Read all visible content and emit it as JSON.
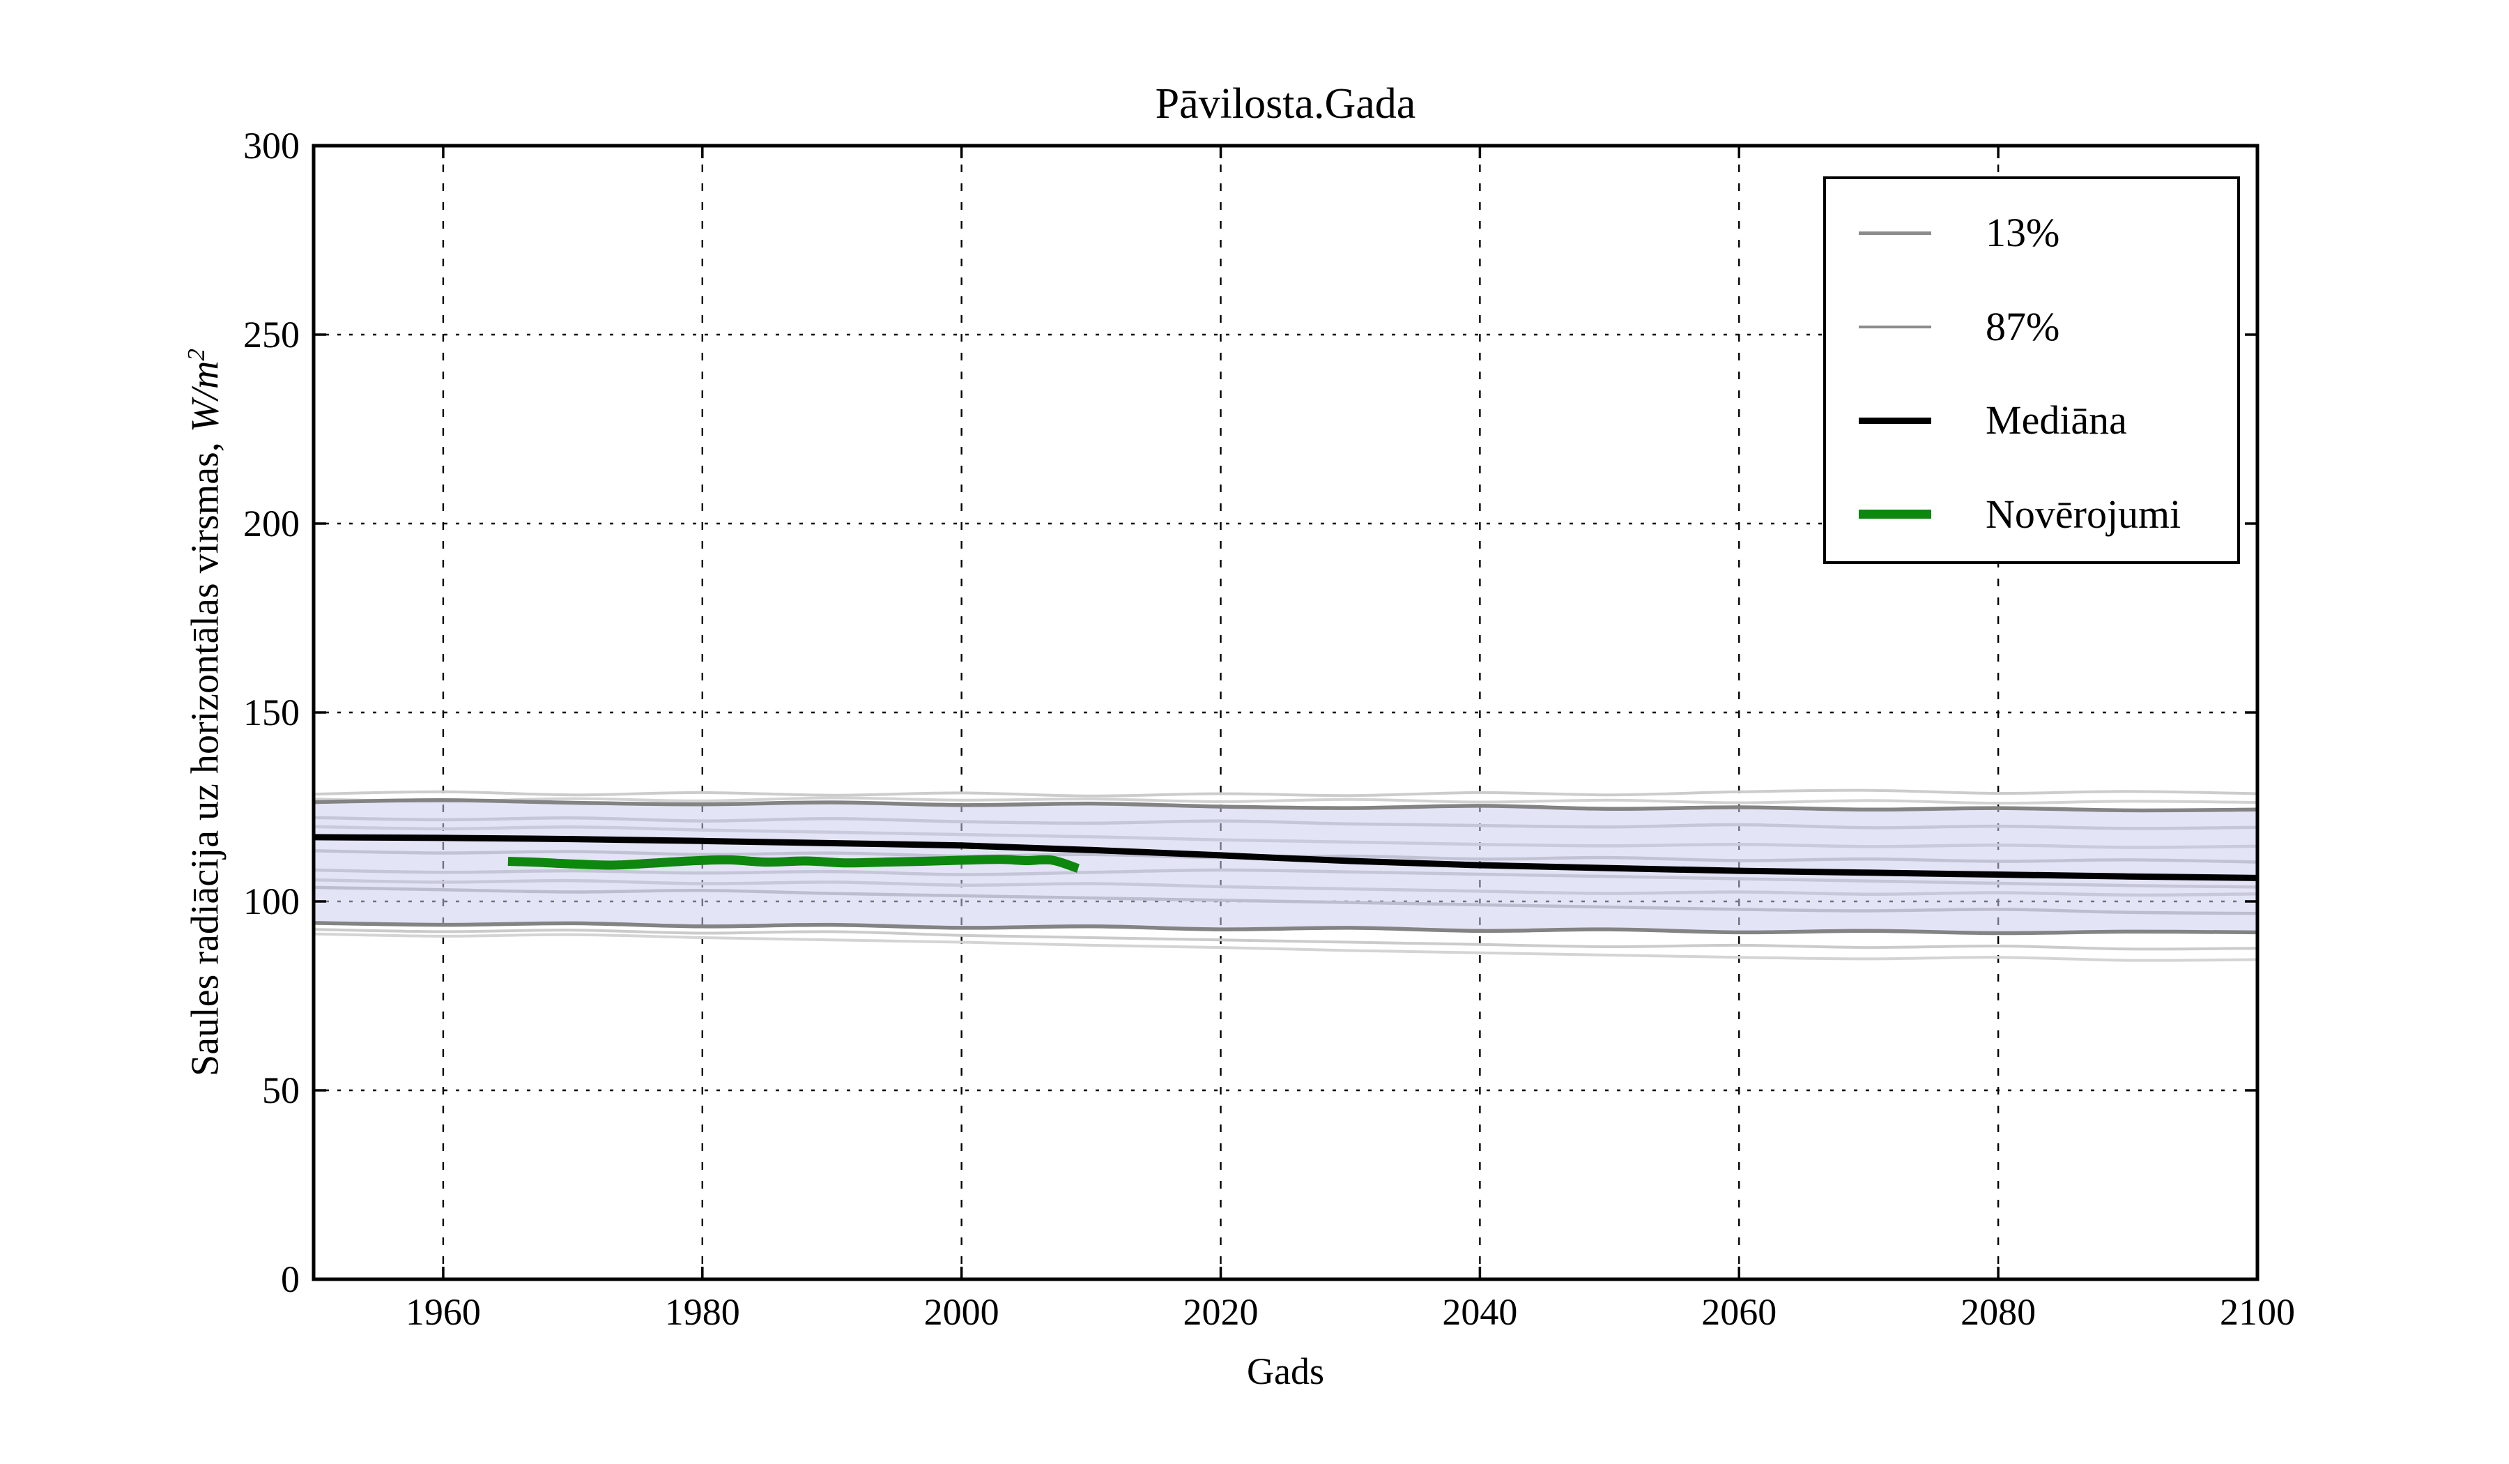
{
  "chart_data": {
    "type": "line",
    "title": "Pāvilosta.Gada",
    "xlabel": "Gads",
    "ylabel": "Saules radiācija uz horizontālas virsmas, W/m²",
    "ylabel_parts": {
      "text": "Saules radiācija uz horizontālas virsmas, ",
      "unit_base": "W/m",
      "unit_sup": "2"
    },
    "xlim": [
      1950,
      2100
    ],
    "ylim": [
      0,
      300
    ],
    "xticks": [
      1960,
      1980,
      2000,
      2020,
      2040,
      2060,
      2080,
      2100
    ],
    "yticks": [
      0,
      50,
      100,
      150,
      200,
      250,
      300
    ],
    "grid": {
      "color": "#000000",
      "horizontal_style": "dotted",
      "vertical_style": "dashed"
    },
    "years": [
      1950,
      1960,
      1970,
      1980,
      1990,
      2000,
      2010,
      2020,
      2030,
      2040,
      2050,
      2060,
      2070,
      2080,
      2090,
      2100
    ],
    "ensemble_lines": [
      {
        "name": "percentile-run-1",
        "color": "#cccccc",
        "width": 4,
        "values": [
          128.4,
          129.0,
          128.2,
          128.8,
          128.1,
          128.7,
          127.9,
          128.5,
          128.0,
          128.8,
          128.2,
          129.0,
          129.4,
          128.6,
          129.1,
          128.5
        ]
      },
      {
        "name": "percentile-run-2",
        "color": "#d2d2d2",
        "width": 4,
        "values": [
          127.1,
          126.5,
          127.2,
          126.6,
          127.4,
          126.8,
          127.1,
          126.4,
          127.0,
          126.3,
          126.8,
          126.1,
          126.7,
          126.0,
          126.5,
          126.2
        ]
      },
      {
        "name": "band-upper-87",
        "color": "#838383",
        "width": 5.5,
        "values": [
          126.3,
          126.8,
          126.1,
          125.7,
          126.2,
          125.5,
          125.9,
          125.1,
          124.7,
          125.3,
          124.5,
          124.9,
          124.3,
          124.7,
          124.1,
          124.3
        ]
      },
      {
        "name": "percentile-run-3",
        "color": "#bdbdbd",
        "width": 4.5,
        "values": [
          122.2,
          121.6,
          122.1,
          121.3,
          121.9,
          121.1,
          120.7,
          121.3,
          120.5,
          120.1,
          119.7,
          120.3,
          119.5,
          119.9,
          119.3,
          119.6
        ]
      },
      {
        "name": "percentile-run-4",
        "color": "#c6c6c6",
        "width": 4.5,
        "values": [
          119.8,
          119.2,
          119.7,
          118.9,
          118.3,
          117.7,
          117.1,
          116.3,
          115.7,
          115.1,
          114.7,
          115.1,
          114.5,
          114.9,
          114.3,
          114.6
        ]
      },
      {
        "name": "percentile-run-5",
        "color": "#b3b3b3",
        "width": 4.5,
        "values": [
          113.4,
          112.8,
          113.2,
          112.4,
          112.8,
          112.0,
          112.4,
          111.6,
          112.0,
          111.2,
          111.6,
          110.8,
          111.2,
          110.6,
          111.0,
          110.4
        ]
      },
      {
        "name": "percentile-run-6",
        "color": "#bababa",
        "width": 4.5,
        "values": [
          108.3,
          107.7,
          108.1,
          107.5,
          107.9,
          107.1,
          107.7,
          108.3,
          107.8,
          107.2,
          106.6,
          106.0,
          105.4,
          104.8,
          104.2,
          103.8
        ]
      },
      {
        "name": "percentile-run-7",
        "color": "#c2c2c2",
        "width": 4.5,
        "values": [
          105.7,
          105.1,
          105.5,
          104.7,
          105.1,
          104.3,
          104.7,
          103.9,
          103.3,
          102.7,
          102.1,
          102.5,
          101.9,
          102.3,
          101.7,
          102.0
        ]
      },
      {
        "name": "percentile-run-8",
        "color": "#a8a8a8",
        "width": 4.5,
        "values": [
          103.7,
          103.1,
          102.5,
          102.9,
          102.1,
          101.5,
          100.9,
          100.3,
          99.7,
          99.1,
          98.5,
          97.9,
          97.5,
          97.9,
          97.1,
          96.8
        ]
      },
      {
        "name": "band-lower-13",
        "color": "#838383",
        "width": 5.5,
        "values": [
          94.3,
          93.8,
          94.2,
          93.4,
          93.8,
          93.0,
          93.4,
          92.6,
          93.0,
          92.2,
          92.6,
          91.8,
          92.2,
          91.6,
          92.0,
          91.8
        ]
      },
      {
        "name": "percentile-run-9",
        "color": "#cbcbcb",
        "width": 4,
        "values": [
          92.6,
          92.0,
          92.4,
          91.6,
          92.0,
          91.0,
          90.4,
          89.8,
          89.2,
          88.6,
          88.0,
          88.4,
          87.8,
          88.2,
          87.4,
          87.6
        ]
      },
      {
        "name": "percentile-run-10",
        "color": "#d4d4d4",
        "width": 4,
        "values": [
          91.4,
          90.8,
          91.2,
          90.4,
          89.8,
          89.2,
          88.4,
          87.8,
          87.0,
          86.4,
          85.8,
          85.2,
          84.8,
          85.2,
          84.4,
          84.6
        ]
      }
    ],
    "band": {
      "fill_color": "rgba(205,205,240,0.55)",
      "upper_index": 2,
      "lower_index": 9
    },
    "median": {
      "label": "Mediāna",
      "color": "#000000",
      "width": 9,
      "values": [
        117.0,
        116.8,
        116.5,
        116.0,
        115.4,
        114.8,
        113.6,
        112.2,
        110.7,
        109.6,
        108.8,
        108.1,
        107.6,
        107.1,
        106.6,
        106.2
      ]
    },
    "observations": {
      "label": "Novērojumi",
      "color": "#0d870d",
      "width": 13,
      "years": [
        1965,
        1967,
        1970,
        1973,
        1976,
        1979,
        1982,
        1985,
        1988,
        1991,
        1994,
        1997,
        2000,
        2003,
        2005,
        2007,
        2009
      ],
      "values": [
        110.6,
        110.4,
        109.9,
        109.6,
        110.1,
        110.7,
        111.0,
        110.4,
        110.7,
        110.2,
        110.4,
        110.6,
        110.9,
        111.1,
        110.8,
        110.9,
        108.7
      ]
    },
    "legend": {
      "position": "upper right",
      "entries": [
        {
          "label": "13%",
          "color": "#8c8c8c",
          "width": 4.5
        },
        {
          "label": "87%",
          "color": "#8c8c8c",
          "width": 4.5
        },
        {
          "label": "Mediāna",
          "color": "#000000",
          "width": 9
        },
        {
          "label": "Novērojumi",
          "color": "#0d870d",
          "width": 13
        }
      ]
    }
  }
}
